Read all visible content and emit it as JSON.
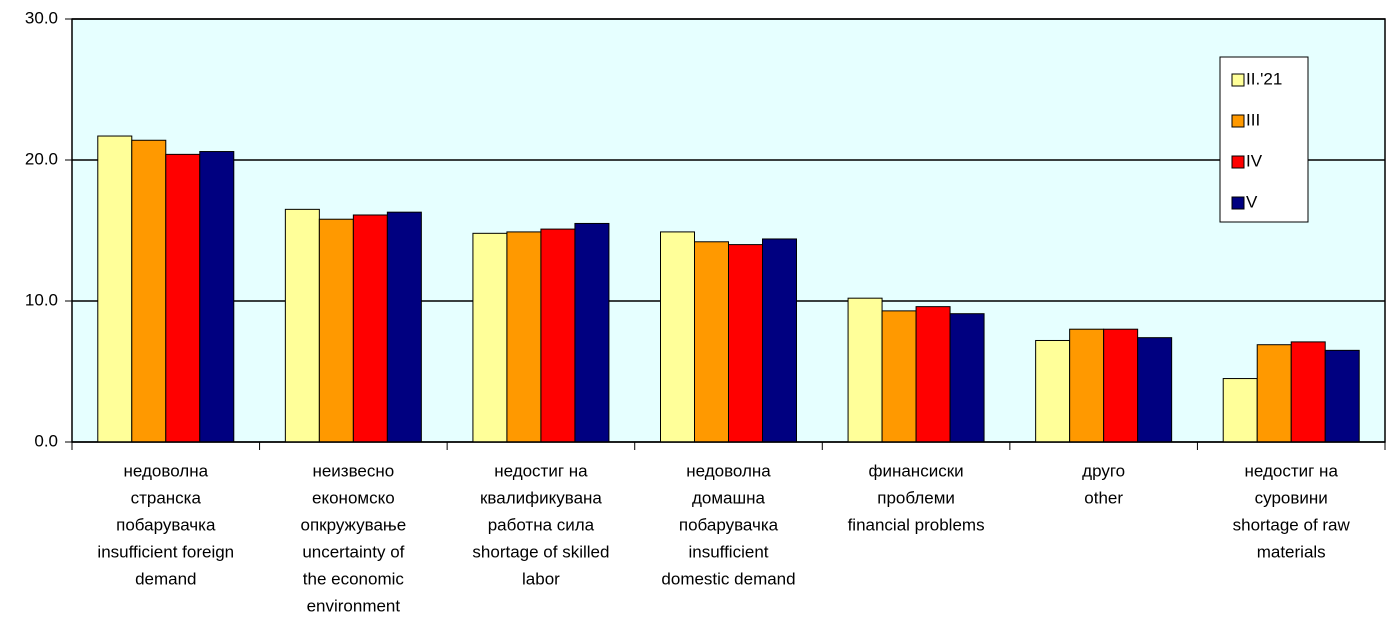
{
  "chart_data": {
    "type": "bar",
    "categories": [
      [
        "недоволна",
        "странска",
        "побарувачка",
        "insufficient foreign",
        "demand"
      ],
      [
        "неизвесно",
        "економско",
        "опкружување",
        "uncertainty of",
        "the economic",
        "environment"
      ],
      [
        "недостиг на",
        "квалификувана",
        "работна сила",
        "shortage of skilled",
        "labor"
      ],
      [
        "недоволна",
        "домашна",
        "побарувачка",
        "insufficient",
        "domestic demand"
      ],
      [
        "финансиски",
        "проблеми",
        "financial problems"
      ],
      [
        "друго",
        "other"
      ],
      [
        "недостиг на",
        "суровини",
        "shortage of raw",
        "materials"
      ]
    ],
    "series": [
      {
        "name": "II.'21",
        "color": "#ffff99",
        "values": [
          21.7,
          16.5,
          14.8,
          14.9,
          10.2,
          7.2,
          4.5
        ]
      },
      {
        "name": "III",
        "color": "#ff9900",
        "values": [
          21.4,
          15.8,
          14.9,
          14.2,
          9.3,
          8.0,
          6.9
        ]
      },
      {
        "name": "IV",
        "color": "#ff0000",
        "values": [
          20.4,
          16.1,
          15.1,
          14.0,
          9.6,
          8.0,
          7.1
        ]
      },
      {
        "name": "V",
        "color": "#000080",
        "values": [
          20.6,
          16.3,
          15.5,
          14.4,
          9.1,
          7.4,
          6.5
        ]
      }
    ],
    "ylim": [
      0,
      30
    ],
    "yticks": [
      {
        "value": 0,
        "label": "0.0"
      },
      {
        "value": 10,
        "label": "10.0"
      },
      {
        "value": 20,
        "label": "20.0"
      },
      {
        "value": 30,
        "label": "30.0"
      }
    ],
    "grid": true,
    "legend": "upper right",
    "background": "#e6ffff"
  }
}
